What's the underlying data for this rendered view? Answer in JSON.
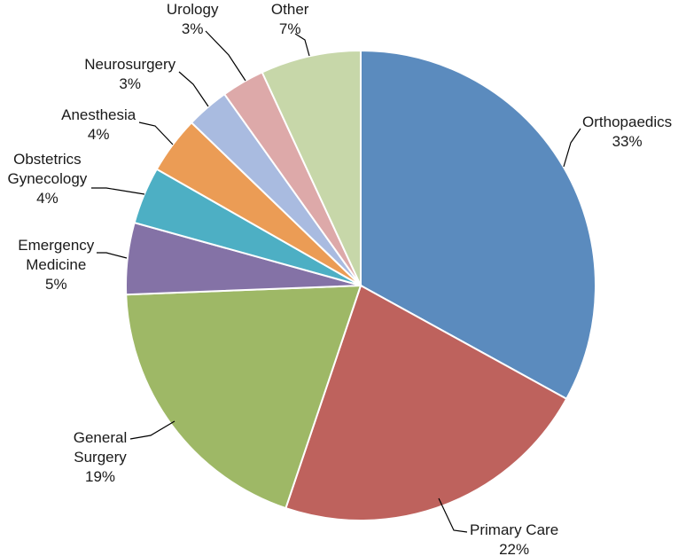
{
  "chart_data": {
    "type": "pie",
    "title": "",
    "slices": [
      {
        "name": "Orthopaedics",
        "label_lines": [
          "Orthopaedics"
        ],
        "pct_text": "33%",
        "value": 33.5,
        "color": "#5B8BBE"
      },
      {
        "name": "Primary Care",
        "label_lines": [
          "Primary Care"
        ],
        "pct_text": "22%",
        "value": 22.5,
        "color": "#BE625D"
      },
      {
        "name": "General Surgery",
        "label_lines": [
          "General",
          "Surgery"
        ],
        "pct_text": "19%",
        "value": 19.5,
        "color": "#9EB866"
      },
      {
        "name": "Emergency Medicine",
        "label_lines": [
          "Emergency",
          "Medicine"
        ],
        "pct_text": "5%",
        "value": 5.0,
        "color": "#8472A6"
      },
      {
        "name": "Obstetrics Gynecology",
        "label_lines": [
          "Obstetrics",
          "Gynecology"
        ],
        "pct_text": "4%",
        "value": 4.0,
        "color": "#4DAFC4"
      },
      {
        "name": "Anesthesia",
        "label_lines": [
          "Anesthesia"
        ],
        "pct_text": "4%",
        "value": 4.0,
        "color": "#EB9C55"
      },
      {
        "name": "Neurosurgery",
        "label_lines": [
          "Neurosurgery"
        ],
        "pct_text": "3%",
        "value": 3.0,
        "color": "#A9BBE0"
      },
      {
        "name": "Urology",
        "label_lines": [
          "Urology"
        ],
        "pct_text": "3%",
        "value": 3.0,
        "color": "#DDA9A9"
      },
      {
        "name": "Other",
        "label_lines": [
          "Other"
        ],
        "pct_text": "7%",
        "value": 7.0,
        "color": "#C7D7A9"
      }
    ]
  }
}
